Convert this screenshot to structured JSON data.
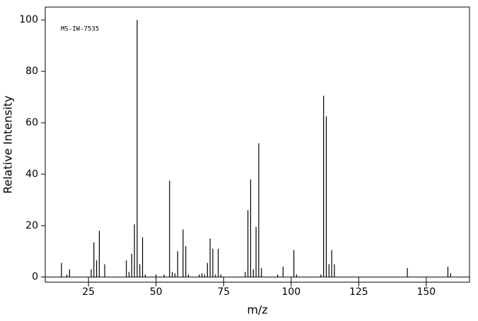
{
  "chart_data": {
    "type": "stem",
    "annotation": "MS-IW-7535",
    "x_label": "m/z",
    "y_label": "Relative Intensity",
    "x": [
      15,
      17,
      18,
      26,
      27,
      28,
      29,
      31,
      39,
      40,
      41,
      42,
      43,
      44,
      45,
      46,
      50,
      53,
      55,
      56,
      57,
      58,
      60,
      61,
      62,
      66,
      67,
      68,
      69,
      70,
      71,
      72,
      73,
      74,
      83,
      84,
      85,
      86,
      87,
      88,
      89,
      95,
      97,
      101,
      102,
      111,
      112,
      113,
      114,
      115,
      116,
      143,
      158,
      159
    ],
    "values": [
      5.5,
      1,
      3,
      3,
      13.5,
      6.5,
      18,
      5,
      6.5,
      2,
      9,
      20.5,
      100,
      5,
      15.5,
      1,
      1,
      1,
      37.5,
      2,
      1.5,
      10,
      18.5,
      12,
      1,
      1,
      1.5,
      1,
      5.5,
      15,
      11,
      1,
      11,
      1,
      2,
      26,
      38,
      3,
      19.5,
      52,
      3.5,
      1,
      4,
      10.5,
      1,
      1,
      70.5,
      62.5,
      5,
      10.5,
      5,
      3.5,
      4,
      1.5
    ],
    "color": "#000000",
    "xlim": [
      9,
      166
    ],
    "xticks": [
      25,
      50,
      75,
      100,
      125,
      150
    ],
    "ylim": [
      -2,
      105
    ],
    "yticks": [
      0,
      20,
      40,
      60,
      80,
      100
    ]
  }
}
